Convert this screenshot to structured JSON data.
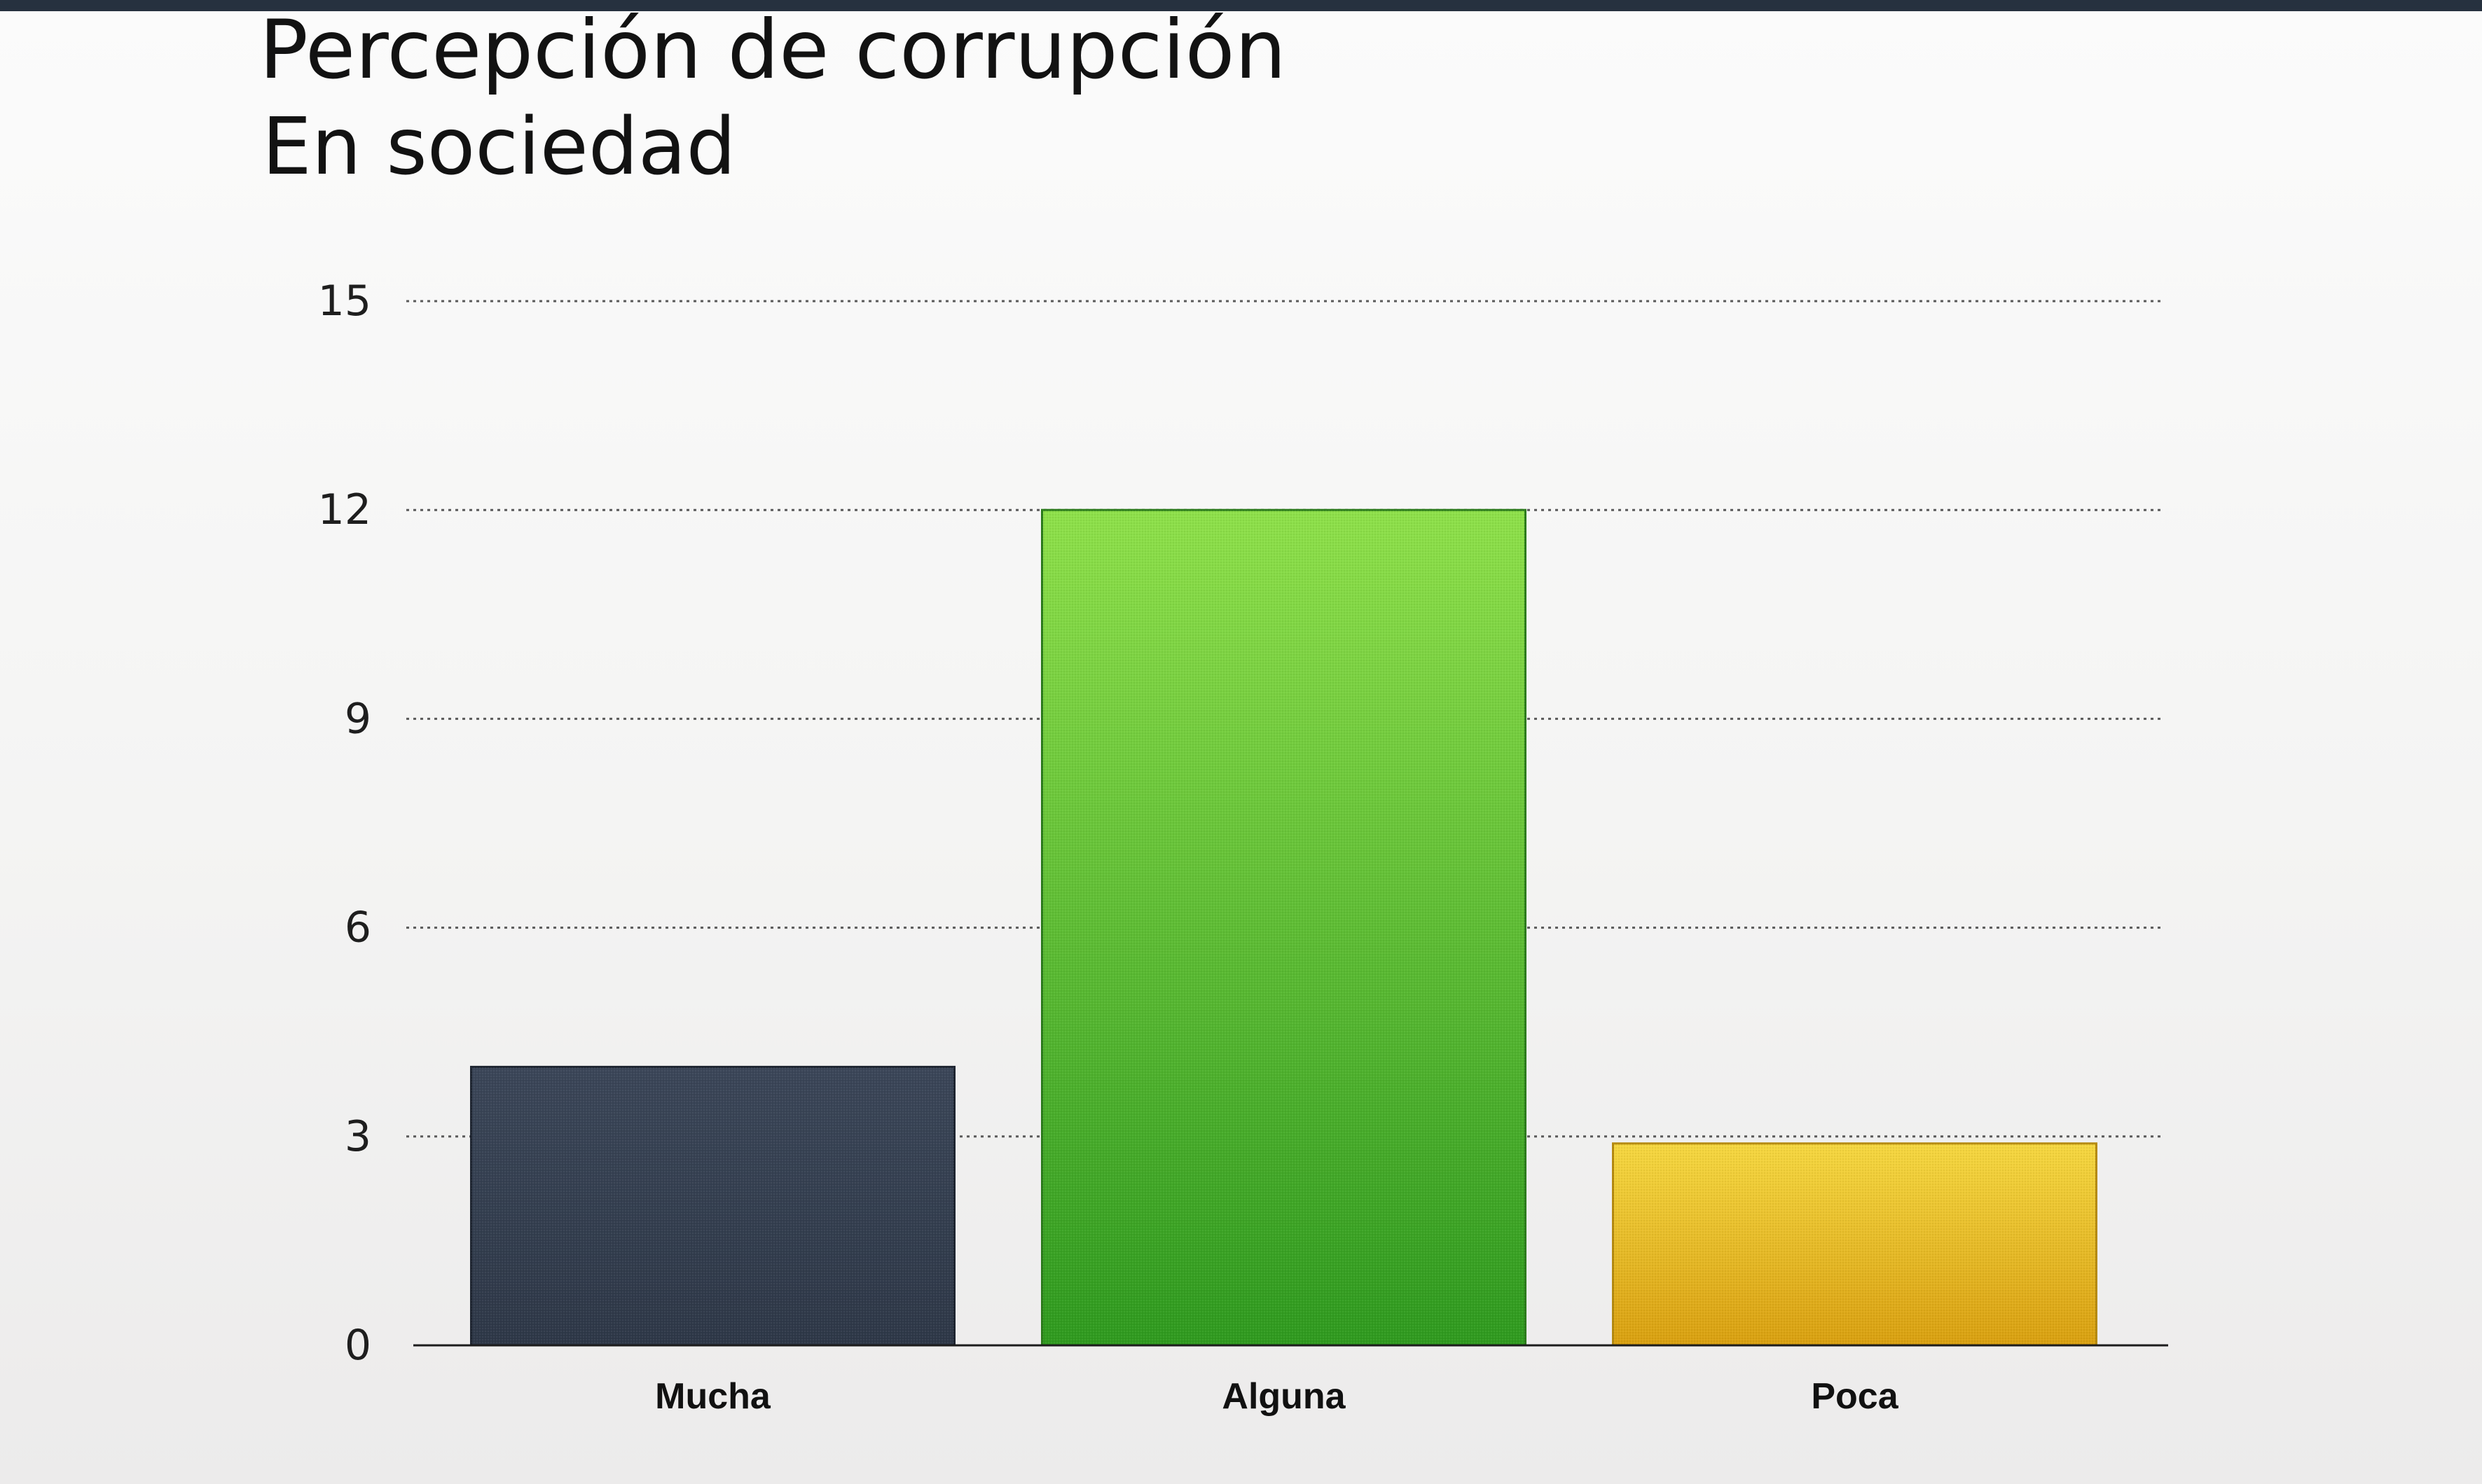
{
  "slide": {
    "title": "Percepción de corrupción",
    "subtitle": "En sociedad"
  },
  "chart_data": {
    "type": "bar",
    "title": "Percepción de corrupción",
    "subtitle": "En sociedad",
    "xlabel": "",
    "ylabel": "",
    "categories": [
      "Mucha",
      "Alguna",
      "Poca"
    ],
    "values": [
      4,
      12,
      2.9
    ],
    "ylim": [
      0,
      15
    ],
    "yticks": [
      0,
      3,
      6,
      9,
      12,
      15
    ],
    "grid": true,
    "legend": "none",
    "colors": {
      "Mucha": {
        "top": "#3b4658",
        "bottom": "#2e3848",
        "stroke": "#1d2430"
      },
      "Alguna": {
        "top": "#8ee04a",
        "bottom": "#2f9a1f",
        "stroke": "#2a7a1a"
      },
      "Poca": {
        "top": "#f5d740",
        "bottom": "#d9a010",
        "stroke": "#b58a10"
      }
    },
    "grid_color": "#5a5a5a",
    "axis_color": "#1c1c1c"
  }
}
